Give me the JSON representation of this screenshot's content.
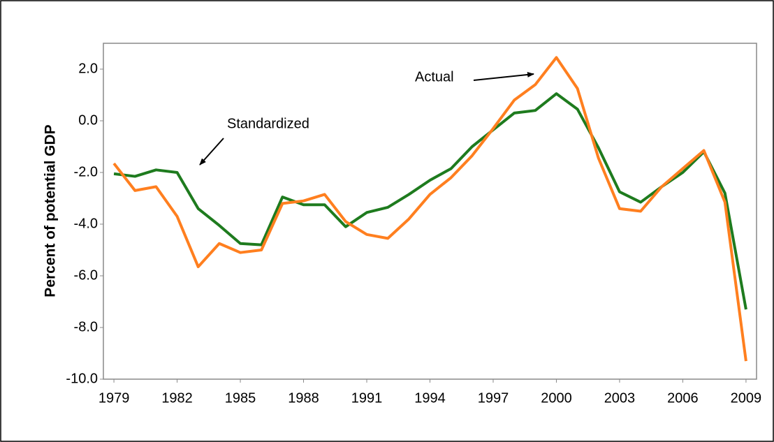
{
  "chart_data": {
    "type": "line",
    "y_label": "Percent of potential GDP",
    "x": [
      1979,
      1980,
      1981,
      1982,
      1983,
      1984,
      1985,
      1986,
      1987,
      1988,
      1989,
      1990,
      1991,
      1992,
      1993,
      1994,
      1995,
      1996,
      1997,
      1998,
      1999,
      2000,
      2001,
      2002,
      2003,
      2004,
      2005,
      2006,
      2007,
      2008,
      2009
    ],
    "series": [
      {
        "name": "Standardized",
        "color": "#1e7b1e",
        "values": [
          -2.05,
          -2.15,
          -1.9,
          -2.0,
          -3.4,
          -4.05,
          -4.75,
          -4.8,
          -2.95,
          -3.25,
          -3.25,
          -4.1,
          -3.55,
          -3.35,
          -2.85,
          -2.3,
          -1.85,
          -1.0,
          -0.35,
          0.3,
          0.4,
          1.05,
          0.45,
          -1.05,
          -2.75,
          -3.15,
          -2.55,
          -2.0,
          -1.2,
          -2.8,
          -7.3
        ]
      },
      {
        "name": "Actual",
        "color": "#ff7f1f",
        "values": [
          -1.65,
          -2.7,
          -2.55,
          -3.7,
          -5.65,
          -4.75,
          -5.1,
          -5.0,
          -3.2,
          -3.1,
          -2.85,
          -3.9,
          -4.4,
          -4.55,
          -3.8,
          -2.85,
          -2.2,
          -1.35,
          -0.3,
          0.8,
          1.4,
          2.45,
          1.25,
          -1.45,
          -3.4,
          -3.5,
          -2.55,
          -1.85,
          -1.15,
          -3.15,
          -9.3
        ]
      }
    ],
    "xlim": [
      1978.5,
      2009.5
    ],
    "xticks": [
      1979,
      1982,
      1985,
      1988,
      1991,
      1994,
      1997,
      2000,
      2003,
      2006,
      2009
    ],
    "ylim": [
      -10,
      3
    ],
    "yticks": [
      {
        "value": -10,
        "label": "-10.0"
      },
      {
        "value": -8,
        "label": "-8.0"
      },
      {
        "value": -6,
        "label": "-6.0"
      },
      {
        "value": -4,
        "label": "-4.0"
      },
      {
        "value": -2,
        "label": "-2.0"
      },
      {
        "value": 0,
        "label": "0.0"
      },
      {
        "value": 2,
        "label": "2.0"
      }
    ],
    "grid": false
  }
}
